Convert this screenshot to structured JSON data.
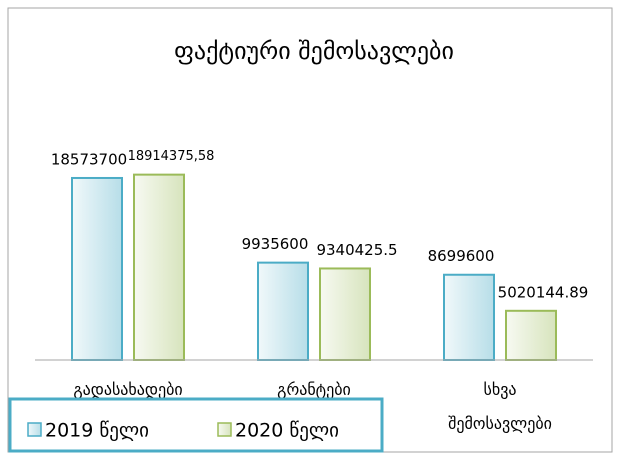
{
  "chart_data": {
    "type": "bar",
    "title": "ფაქტიური შემოსავლები",
    "categories": [
      "გადასახადები",
      "გრანტები",
      "სხვა შემოსავლები"
    ],
    "series": [
      {
        "name": "2019 წელი",
        "color": "#4bacc6",
        "values": [
          18573700,
          9935600,
          8699600
        ]
      },
      {
        "name": "2020 წელი",
        "color": "#9bbb59",
        "values": [
          18914375.58,
          9340425.5,
          5020144.89
        ],
        "value_labels": [
          "18914375,58",
          "9340425.5",
          "5020144.89"
        ]
      }
    ],
    "ylim": [
      0,
      20000000
    ]
  }
}
